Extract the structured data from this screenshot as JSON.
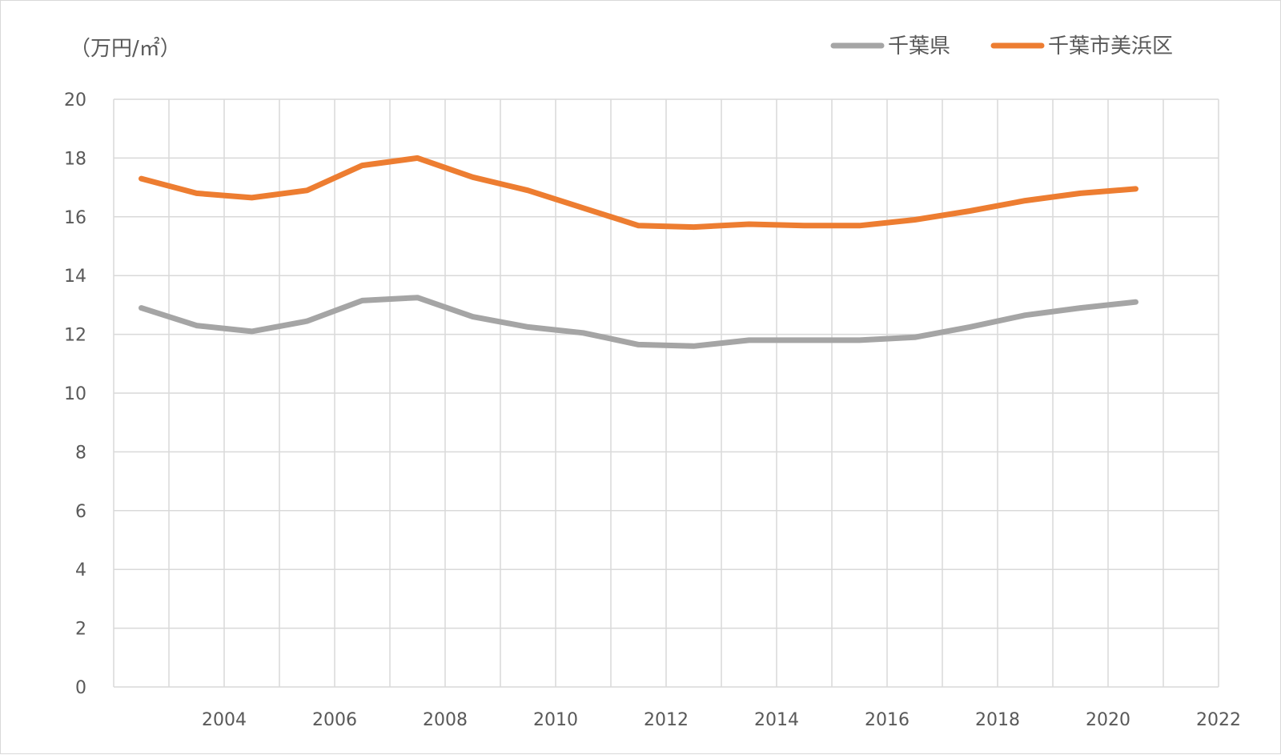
{
  "chart_data": {
    "type": "line",
    "title": "",
    "y_unit_label": "（万円/㎡）",
    "xlabel": "",
    "ylabel": "",
    "ylim": [
      0,
      20
    ],
    "y_ticks": [
      "0",
      "2",
      "4",
      "6",
      "8",
      "10",
      "12",
      "14",
      "16",
      "18",
      "20"
    ],
    "xlim": [
      2002,
      2022
    ],
    "x_ticks": [
      "2004",
      "2006",
      "2008",
      "2010",
      "2012",
      "2014",
      "2016",
      "2018",
      "2020",
      "2022"
    ],
    "grid": true,
    "legend_position": "top-right",
    "x": [
      2002.5,
      2003.5,
      2004.5,
      2005.5,
      2006.5,
      2007.5,
      2008.5,
      2009.5,
      2010.5,
      2011.5,
      2012.5,
      2013.5,
      2014.5,
      2015.5,
      2016.5,
      2017.5,
      2018.5,
      2019.5,
      2020.5
    ],
    "series": [
      {
        "name": "千葉県",
        "color": "#a5a5a5",
        "values": [
          12.9,
          12.3,
          12.1,
          12.45,
          13.15,
          13.25,
          12.6,
          12.25,
          12.05,
          11.65,
          11.6,
          11.8,
          11.8,
          11.8,
          11.9,
          12.25,
          12.65,
          12.9,
          13.1
        ]
      },
      {
        "name": "千葉市美浜区",
        "color": "#ed7d31",
        "values": [
          17.3,
          16.8,
          16.65,
          16.9,
          17.75,
          18.0,
          17.35,
          16.9,
          16.3,
          15.7,
          15.65,
          15.75,
          15.7,
          15.7,
          15.9,
          16.2,
          16.55,
          16.8,
          16.95
        ]
      }
    ]
  }
}
